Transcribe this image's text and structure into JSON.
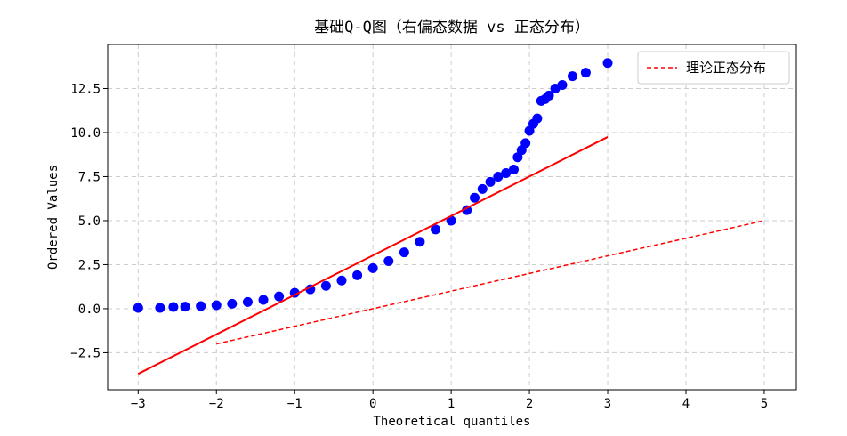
{
  "chart_data": {
    "type": "scatter",
    "title": "基础Q-Q图（右偏态数据 vs 正态分布）",
    "x_label": "Theoretical quantiles",
    "y_label": "Ordered Values",
    "xlim": [
      -3.39,
      5.41
    ],
    "ylim": [
      -4.6,
      15.0
    ],
    "xticks": [
      {
        "value": -3,
        "label": "−3"
      },
      {
        "value": -2,
        "label": "−2"
      },
      {
        "value": -1,
        "label": "−1"
      },
      0,
      1,
      2,
      3,
      4,
      5
    ],
    "yticks": [
      {
        "value": -2.5,
        "label": "−2.5"
      },
      {
        "value": 0,
        "label": "0.0"
      },
      2.5,
      {
        "value": 5,
        "label": "5.0"
      },
      7.5,
      {
        "value": 10,
        "label": "10.0"
      },
      12.5
    ],
    "grid": true,
    "legend": "upper right",
    "series": [
      {
        "type": "scatter",
        "color": "#0000ff",
        "x": [
          -3.0,
          -2.72,
          -2.55,
          -2.4,
          -2.2,
          -2.0,
          -1.8,
          -1.6,
          -1.4,
          -1.2,
          -1.0,
          -0.8,
          -0.6,
          -0.4,
          -0.2,
          0,
          0.2,
          0.4,
          0.6,
          0.8,
          1.0,
          1.2,
          1.3,
          1.4,
          1.5,
          1.6,
          1.7,
          1.8,
          1.85,
          1.9,
          1.95,
          2.0,
          2.05,
          2.1,
          2.15,
          2.2,
          2.25,
          2.33,
          2.42,
          2.55,
          2.72,
          3.0
        ],
        "values": [
          0.05,
          0.05,
          0.1,
          0.12,
          0.15,
          0.2,
          0.28,
          0.38,
          0.5,
          0.7,
          0.9,
          1.1,
          1.3,
          1.6,
          1.9,
          2.3,
          2.7,
          3.2,
          3.8,
          4.5,
          5.0,
          5.6,
          6.3,
          6.8,
          7.2,
          7.5,
          7.7,
          7.9,
          8.6,
          9.0,
          9.4,
          10.1,
          10.5,
          10.8,
          11.8,
          11.9,
          12.1,
          12.5,
          12.7,
          13.2,
          13.4,
          13.95
        ]
      },
      {
        "type": "line",
        "color": "#ff0000",
        "x": [
          -3,
          3
        ],
        "values": [
          -3.7,
          9.75
        ]
      },
      {
        "type": "line",
        "name": "理论正态分布",
        "color": "#ff0000",
        "dashed": true,
        "x": [
          -2,
          5
        ],
        "values": [
          -2,
          5
        ]
      }
    ]
  }
}
